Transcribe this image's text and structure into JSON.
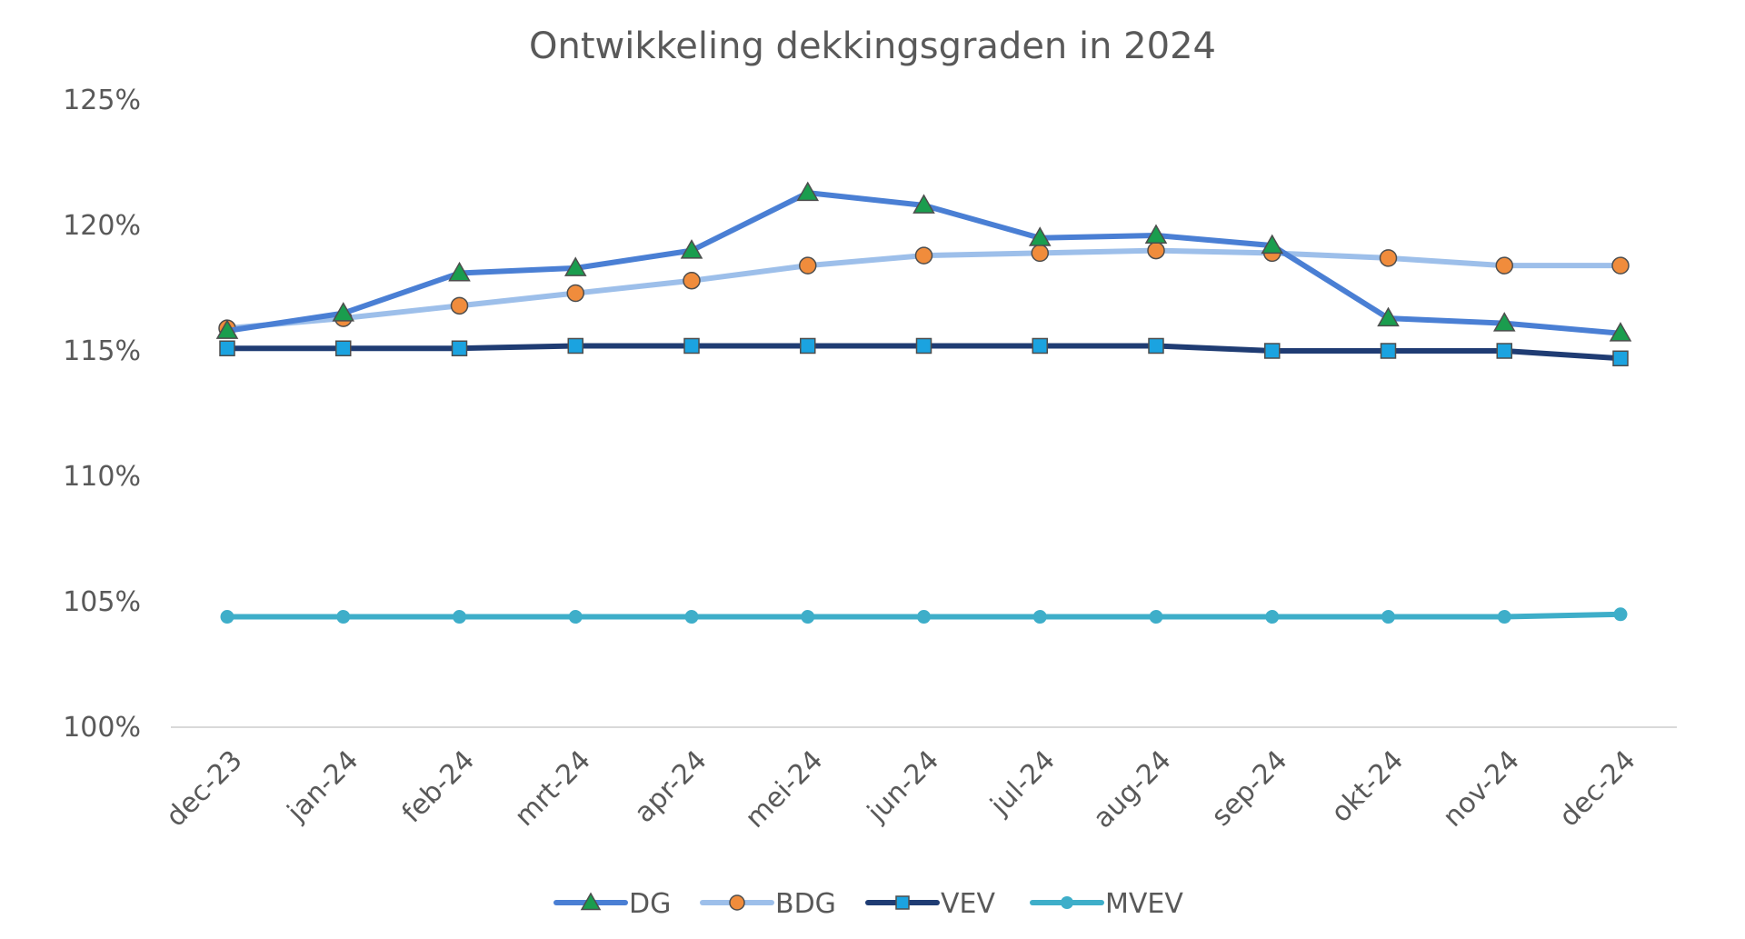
{
  "chart_data": {
    "type": "line",
    "title": "Ontwikkeling dekkingsgraden in 2024",
    "xlabel": "",
    "ylabel": "",
    "categories": [
      "dec-23",
      "jan-24",
      "feb-24",
      "mrt-24",
      "apr-24",
      "mei-24",
      "jun-24",
      "jul-24",
      "aug-24",
      "sep-24",
      "okt-24",
      "nov-24",
      "dec-24"
    ],
    "ylim": [
      100,
      125
    ],
    "yticks": [
      100,
      105,
      110,
      115,
      120,
      125
    ],
    "ytick_labels": [
      "100%",
      "105%",
      "110%",
      "115%",
      "120%",
      "125%"
    ],
    "grid": false,
    "legend_position": "bottom",
    "series": [
      {
        "name": "DG",
        "color": "#4a7fd4",
        "marker": "triangle",
        "marker_color": "#1a9d4e",
        "values": [
          115.8,
          116.5,
          118.1,
          118.3,
          119.0,
          121.3,
          120.8,
          119.5,
          119.6,
          119.2,
          116.3,
          116.1,
          115.7
        ]
      },
      {
        "name": "BDG",
        "color": "#9dbfea",
        "marker": "circle",
        "marker_color": "#f08c3c",
        "values": [
          115.9,
          116.3,
          116.8,
          117.3,
          117.8,
          118.4,
          118.8,
          118.9,
          119.0,
          118.9,
          118.7,
          118.4,
          118.4
        ]
      },
      {
        "name": "VEV",
        "color": "#1f3c73",
        "marker": "square",
        "marker_color": "#1ba3e0",
        "values": [
          115.1,
          115.1,
          115.1,
          115.2,
          115.2,
          115.2,
          115.2,
          115.2,
          115.2,
          115.0,
          115.0,
          115.0,
          114.7
        ]
      },
      {
        "name": "MVEV",
        "color": "#3eaec9",
        "marker": "circle",
        "marker_color": "#3eaec9",
        "values": [
          104.4,
          104.4,
          104.4,
          104.4,
          104.4,
          104.4,
          104.4,
          104.4,
          104.4,
          104.4,
          104.4,
          104.4,
          104.5
        ]
      }
    ]
  }
}
